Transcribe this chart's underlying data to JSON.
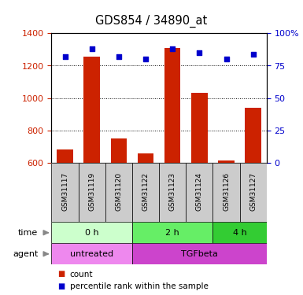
{
  "title": "GDS854 / 34890_at",
  "samples": [
    "GSM31117",
    "GSM31119",
    "GSM31120",
    "GSM31122",
    "GSM31123",
    "GSM31124",
    "GSM31126",
    "GSM31127"
  ],
  "counts": [
    685,
    1255,
    750,
    658,
    1310,
    1035,
    615,
    940
  ],
  "percentile_ranks": [
    82,
    88,
    82,
    80,
    88,
    85,
    80,
    84
  ],
  "ylim_left": [
    600,
    1400
  ],
  "ylim_right": [
    0,
    100
  ],
  "yticks_left": [
    600,
    800,
    1000,
    1200,
    1400
  ],
  "yticks_right": [
    0,
    25,
    50,
    75,
    100
  ],
  "bar_color": "#cc2200",
  "dot_color": "#0000cc",
  "sample_cell_color": "#cccccc",
  "time_groups": [
    {
      "label": "0 h",
      "start": 0,
      "end": 3,
      "color": "#ccffcc"
    },
    {
      "label": "2 h",
      "start": 3,
      "end": 6,
      "color": "#66ee66"
    },
    {
      "label": "4 h",
      "start": 6,
      "end": 8,
      "color": "#33cc33"
    }
  ],
  "agent_groups": [
    {
      "label": "untreated",
      "start": 0,
      "end": 3,
      "color": "#ee88ee"
    },
    {
      "label": "TGFbeta",
      "start": 3,
      "end": 8,
      "color": "#cc44cc"
    }
  ],
  "left_axis_color": "#cc2200",
  "right_axis_color": "#0000cc",
  "grid_color": "#000000",
  "bar_width": 0.6,
  "legend_items": [
    {
      "label": "count",
      "color": "#cc2200"
    },
    {
      "label": "percentile rank within the sample",
      "color": "#0000cc"
    }
  ]
}
